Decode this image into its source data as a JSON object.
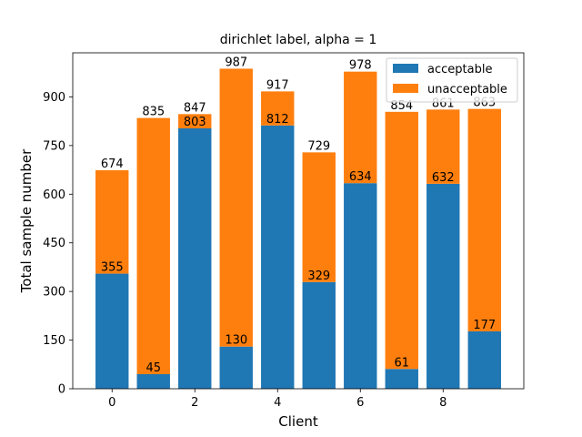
{
  "chart_data": {
    "type": "bar",
    "stacked": true,
    "title": "dirichlet label, alpha = 1",
    "xlabel": "Client",
    "ylabel": "Total sample number",
    "categories": [
      0,
      1,
      2,
      3,
      4,
      5,
      6,
      7,
      8,
      9
    ],
    "xticks": [
      0,
      2,
      4,
      6,
      8
    ],
    "yticks": [
      0,
      150,
      300,
      450,
      600,
      750,
      900
    ],
    "ylim": [
      0,
      1036
    ],
    "xlim": [
      -0.95,
      9.95
    ],
    "grid": false,
    "legend": "upper right",
    "series": [
      {
        "name": "acceptable",
        "color": "#1f77b4",
        "values": [
          355,
          45,
          803,
          130,
          812,
          329,
          634,
          61,
          632,
          177
        ]
      },
      {
        "name": "unacceptable",
        "color": "#ff7f0e",
        "values": [
          319,
          790,
          44,
          857,
          105,
          400,
          344,
          793,
          229,
          686
        ]
      }
    ],
    "totals": [
      674,
      835,
      847,
      987,
      917,
      729,
      978,
      854,
      861,
      863
    ]
  }
}
